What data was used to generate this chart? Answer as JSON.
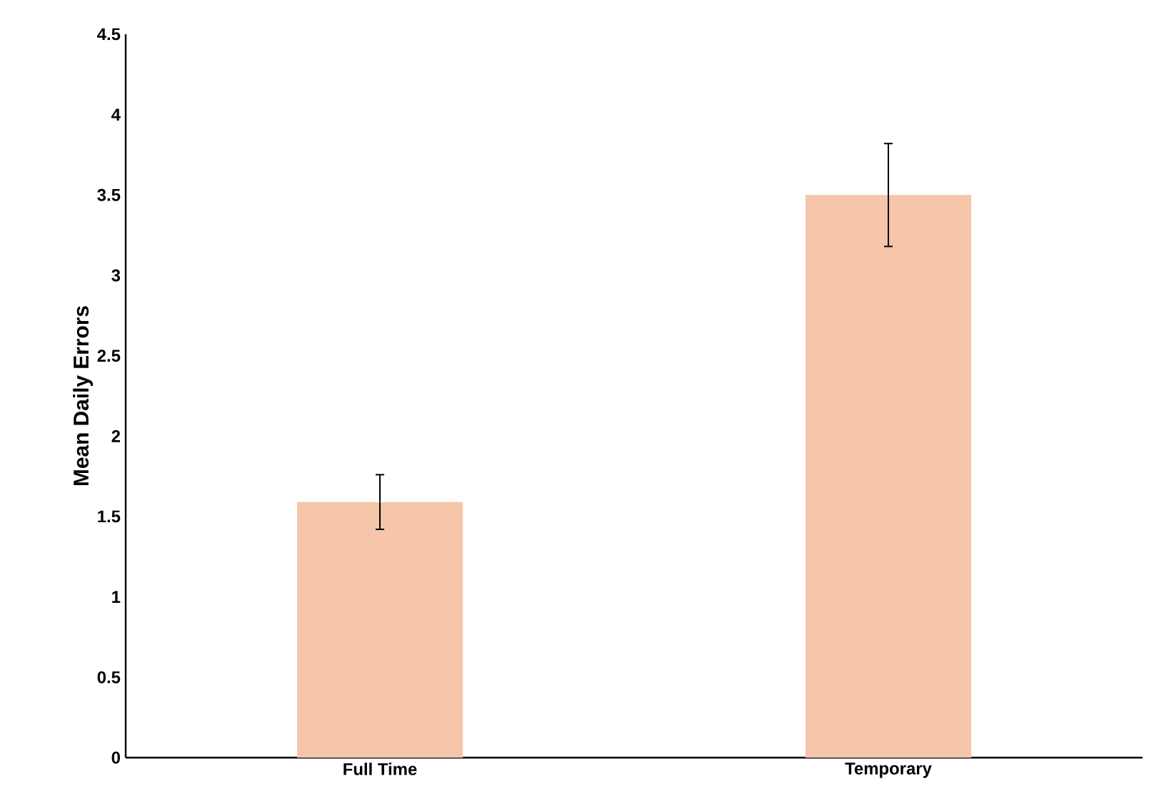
{
  "chart_data": {
    "type": "bar",
    "ylabel": "Mean Daily Errors",
    "categories": [
      "Full Time",
      "Temporary"
    ],
    "values": [
      1.59,
      3.5
    ],
    "errors": [
      0.17,
      0.32
    ],
    "color": "#f5c6aa",
    "ylim": [
      0,
      4.5
    ],
    "yticks": [
      0,
      0.5,
      1,
      1.5,
      2,
      2.5,
      3,
      3.5,
      4,
      4.5
    ]
  }
}
